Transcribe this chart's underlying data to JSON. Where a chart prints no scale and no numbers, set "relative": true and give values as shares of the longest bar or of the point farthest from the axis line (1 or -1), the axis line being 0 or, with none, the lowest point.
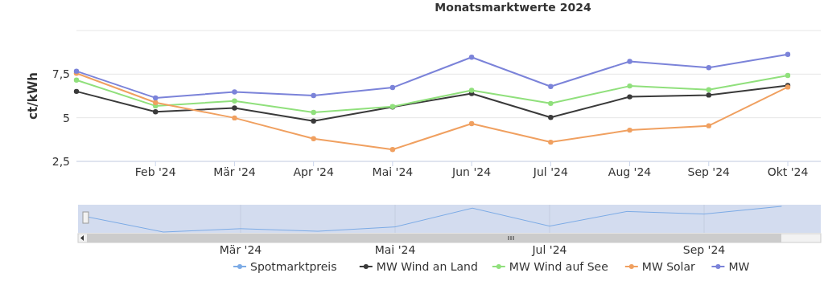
{
  "chart_data": [
    {
      "type": "line",
      "title": "Monatsmarktwerte 2024",
      "ylabel": "ct/kWh",
      "categories": [
        null,
        "Feb '24",
        "Mär '24",
        "Apr '24",
        "Mai '24",
        "Jun '24",
        "Jul '24",
        "Aug '24",
        "Sep '24",
        "Okt '24"
      ],
      "series": [
        {
          "name": "MW Wind an Land",
          "color": "#3a3a3a",
          "values": [
            6.51,
            5.34,
            5.56,
            4.81,
            5.62,
            6.39,
            5.02,
            6.2,
            6.3,
            6.85
          ]
        },
        {
          "name": "MW Wind auf See",
          "color": "#90e07c",
          "values": [
            7.16,
            5.68,
            5.96,
            5.31,
            5.64,
            6.57,
            5.82,
            6.82,
            6.61,
            7.42
          ]
        },
        {
          "name": "MW Solar",
          "color": "#f0a060",
          "values": [
            7.55,
            5.87,
            4.99,
            3.8,
            3.18,
            4.66,
            3.6,
            4.29,
            4.54,
            6.76
          ]
        },
        {
          "name": "MW",
          "color": "#7b83d9",
          "values": [
            7.67,
            6.14,
            6.48,
            6.27,
            6.73,
            8.47,
            6.79,
            8.23,
            7.87,
            8.63
          ]
        }
      ],
      "ylim": [
        2.5,
        10
      ],
      "yticks": [
        {
          "value": 2.5,
          "label": "2,5"
        },
        {
          "value": 5,
          "label": "5"
        },
        {
          "value": 7.5,
          "label": "7,5"
        },
        {
          "value": 10,
          "label": null
        }
      ],
      "grid": "y",
      "marker": "circle",
      "legend": "bottom"
    },
    {
      "type": "line",
      "relative": true,
      "categories": [
        null,
        null,
        "Mär '24",
        null,
        "Mai '24",
        null,
        "Jul '24",
        null,
        "Sep '24",
        null
      ],
      "series": [
        {
          "name": "Spotmarktpreis",
          "color": "#7cabe6",
          "values": [
            0.6,
            0,
            0.13,
            0.03,
            0.2,
            0.93,
            0.23,
            0.8,
            0.7,
            1
          ]
        }
      ],
      "grid": "x",
      "marker": "none",
      "legend": "bottom",
      "tick_labels": "x"
    }
  ]
}
